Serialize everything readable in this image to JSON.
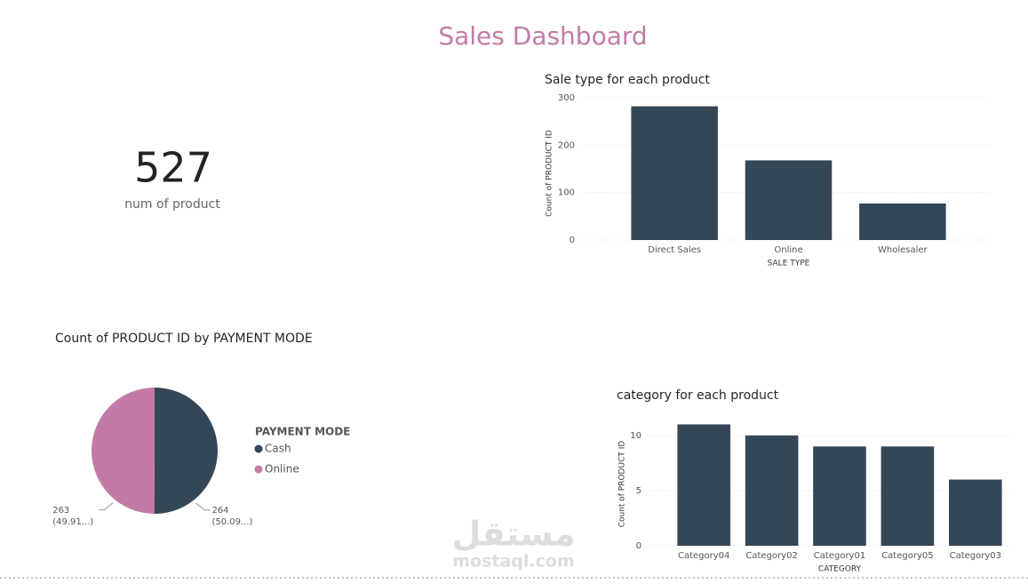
{
  "title": "Sales Dashboard",
  "kpi": {
    "value": 527,
    "label": "num of product"
  },
  "watermark": {
    "arabic": "مستقل",
    "latin": "mostaql.com"
  },
  "chart_data": [
    {
      "type": "bar",
      "title": "Sale type for each product",
      "categories": [
        "Direct Sales",
        "Online",
        "Wholesaler"
      ],
      "values": [
        282,
        168,
        77
      ],
      "color": "#344756",
      "ylim": [
        0,
        300
      ],
      "yticks": [
        0,
        100,
        200,
        300
      ],
      "grid": true,
      "x_label": "SALE TYPE",
      "y_label": "Count of PRODUCT ID"
    },
    {
      "type": "pie",
      "title": "Count of PRODUCT ID by PAYMENT MODE",
      "categories": [
        "Cash",
        "Online"
      ],
      "values": [
        264,
        263
      ],
      "value_labels": [
        "264 (50.09...)",
        "263 (49.91...)"
      ],
      "colors": [
        "#344756",
        "#c27ba6"
      ],
      "legend_title": "PAYMENT MODE"
    },
    {
      "type": "bar",
      "title": "category for each product",
      "categories": [
        "Category04",
        "Category02",
        "Category01",
        "Category05",
        "Category03"
      ],
      "values": [
        11,
        10,
        9,
        9,
        6
      ],
      "color": "#344756",
      "ylim": [
        0,
        12
      ],
      "yticks": [
        0,
        5,
        10
      ],
      "grid": true,
      "x_label": "CATEGORY",
      "y_label": "Count of PRODUCT ID"
    }
  ]
}
